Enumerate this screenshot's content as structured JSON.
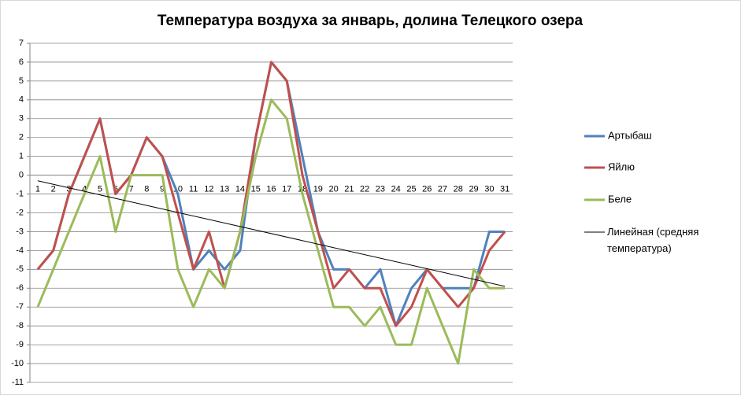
{
  "chart_data": {
    "type": "line",
    "title": "Температура воздуха за январь, долина Телецкого озера",
    "categories": [
      "1",
      "2",
      "3",
      "4",
      "5",
      "6",
      "7",
      "8",
      "9",
      "10",
      "11",
      "12",
      "13",
      "14",
      "15",
      "16",
      "17",
      "18",
      "19",
      "20",
      "21",
      "22",
      "23",
      "24",
      "25",
      "26",
      "27",
      "28",
      "29",
      "30",
      "31"
    ],
    "series": [
      {
        "name": "Артыбаш",
        "color": "#4f81bd",
        "values": [
          -5,
          -4,
          -1,
          1,
          3,
          -1,
          0,
          2,
          1,
          -1,
          -5,
          -4,
          -5,
          -4,
          2,
          6,
          5,
          1,
          -3,
          -5,
          -5,
          -6,
          -5,
          -8,
          -6,
          -5,
          -6,
          -6,
          -6,
          -3,
          -3
        ]
      },
      {
        "name": "Яйлю",
        "color": "#c0504d",
        "values": [
          -5,
          -4,
          -1,
          1,
          3,
          -1,
          0,
          2,
          1,
          -2,
          -5,
          -3,
          -6,
          -3,
          2,
          6,
          5,
          0,
          -3,
          -6,
          -5,
          -6,
          -6,
          -8,
          -7,
          -5,
          -6,
          -7,
          -6,
          -4,
          -3
        ]
      },
      {
        "name": "Беле",
        "color": "#9bbb59",
        "values": [
          -7,
          -5,
          -3,
          -1,
          1,
          -3,
          0,
          0,
          0,
          -5,
          -7,
          -5,
          -6,
          -3,
          1,
          4,
          3,
          -1,
          -4,
          -7,
          -7,
          -8,
          -7,
          -9,
          -9,
          -6,
          -8,
          -10,
          -5,
          -6,
          -6
        ]
      }
    ],
    "trendline": {
      "name": "Линейная (средняя температура)",
      "color": "#000000",
      "start": -0.3,
      "end": -5.9
    },
    "ylim": [
      -11,
      7
    ],
    "yticks": [
      -11,
      -10,
      -9,
      -8,
      -7,
      -6,
      -5,
      -4,
      -3,
      -2,
      -1,
      0,
      1,
      2,
      3,
      4,
      5,
      6,
      7
    ],
    "grid": true,
    "legend": "right"
  }
}
